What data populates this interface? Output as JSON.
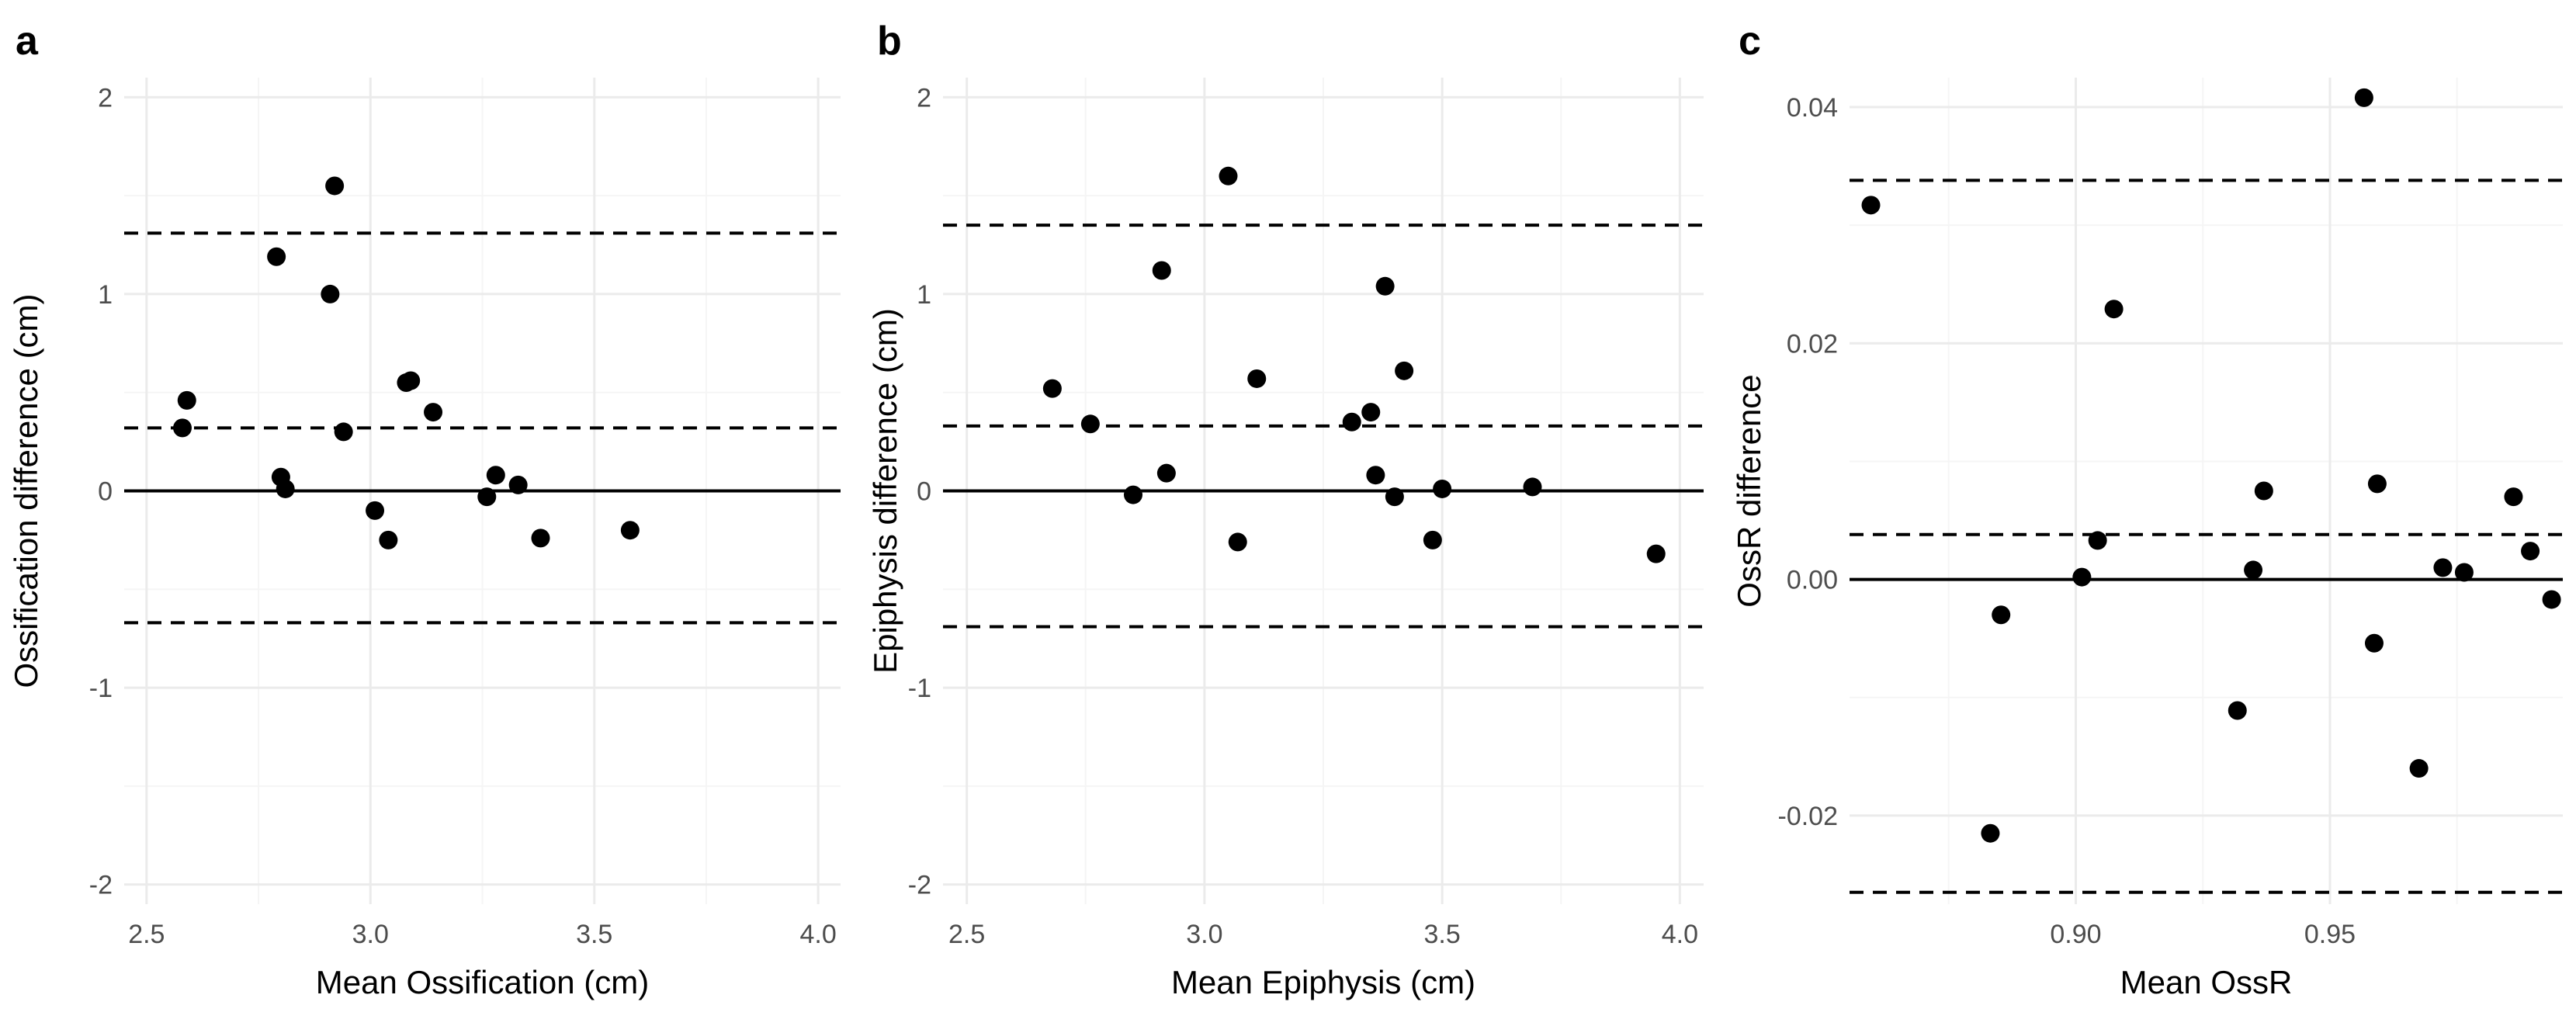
{
  "figure": {
    "background": "#ffffff"
  },
  "colors": {
    "grid_major": "#ebebeb",
    "grid_minor": "#f5f5f5",
    "points": "#000000",
    "lines": "#000000",
    "tick_text": "#4d4d4d"
  },
  "chart_data": [
    {
      "id": "a",
      "panel_label": "a",
      "type": "scatter",
      "xlabel": "Mean Ossification (cm)",
      "ylabel": "Ossification difference (cm)",
      "xlim": [
        2.45,
        4.05
      ],
      "ylim": [
        -2.1,
        2.1
      ],
      "xticks": [
        2.5,
        3.0,
        3.5,
        4.0
      ],
      "xtick_labels": [
        "2.5",
        "3.0",
        "3.5",
        "4.0"
      ],
      "yticks": [
        -2,
        -1,
        0,
        1,
        2
      ],
      "ytick_labels": [
        "-2",
        "-1",
        "0",
        "1",
        "2"
      ],
      "zero_line": 0,
      "mean_diff": 0.32,
      "loa_upper": 1.31,
      "loa_lower": -0.67,
      "points": [
        {
          "x": 2.58,
          "y": 0.32
        },
        {
          "x": 2.59,
          "y": 0.46
        },
        {
          "x": 2.79,
          "y": 1.19
        },
        {
          "x": 2.8,
          "y": 0.07
        },
        {
          "x": 2.81,
          "y": 0.01
        },
        {
          "x": 2.91,
          "y": 1.0
        },
        {
          "x": 2.92,
          "y": 1.55
        },
        {
          "x": 2.94,
          "y": 0.3
        },
        {
          "x": 3.01,
          "y": -0.1
        },
        {
          "x": 3.04,
          "y": -0.25
        },
        {
          "x": 3.08,
          "y": 0.55
        },
        {
          "x": 3.09,
          "y": 0.56
        },
        {
          "x": 3.14,
          "y": 0.4
        },
        {
          "x": 3.26,
          "y": -0.03
        },
        {
          "x": 3.28,
          "y": 0.08
        },
        {
          "x": 3.33,
          "y": 0.03
        },
        {
          "x": 3.38,
          "y": -0.24
        },
        {
          "x": 3.58,
          "y": -0.2
        }
      ]
    },
    {
      "id": "b",
      "panel_label": "b",
      "type": "scatter",
      "xlabel": "Mean Epiphysis (cm)",
      "ylabel": "Epiphysis difference (cm)",
      "xlim": [
        2.45,
        4.05
      ],
      "ylim": [
        -2.1,
        2.1
      ],
      "xticks": [
        2.5,
        3.0,
        3.5,
        4.0
      ],
      "xtick_labels": [
        "2.5",
        "3.0",
        "3.5",
        "4.0"
      ],
      "yticks": [
        -2,
        -1,
        0,
        1,
        2
      ],
      "ytick_labels": [
        "-2",
        "-1",
        "0",
        "1",
        "2"
      ],
      "zero_line": 0,
      "mean_diff": 0.33,
      "loa_upper": 1.35,
      "loa_lower": -0.69,
      "points": [
        {
          "x": 2.68,
          "y": 0.52
        },
        {
          "x": 2.76,
          "y": 0.34
        },
        {
          "x": 2.85,
          "y": -0.02
        },
        {
          "x": 2.91,
          "y": 1.12
        },
        {
          "x": 2.92,
          "y": 0.09
        },
        {
          "x": 3.05,
          "y": 1.6
        },
        {
          "x": 3.07,
          "y": -0.26
        },
        {
          "x": 3.11,
          "y": 0.57
        },
        {
          "x": 3.31,
          "y": 0.35
        },
        {
          "x": 3.35,
          "y": 0.4
        },
        {
          "x": 3.36,
          "y": 0.08
        },
        {
          "x": 3.38,
          "y": 1.04
        },
        {
          "x": 3.4,
          "y": -0.03
        },
        {
          "x": 3.42,
          "y": 0.61
        },
        {
          "x": 3.48,
          "y": -0.25
        },
        {
          "x": 3.5,
          "y": 0.01
        },
        {
          "x": 3.69,
          "y": 0.02
        },
        {
          "x": 3.95,
          "y": -0.32
        }
      ]
    },
    {
      "id": "c",
      "panel_label": "c",
      "type": "scatter",
      "xlabel": "Mean OssR",
      "ylabel": "OssR difference",
      "xlim": [
        0.8555,
        0.9958
      ],
      "ylim": [
        -0.0275,
        0.0425
      ],
      "xticks": [
        0.9,
        0.95
      ],
      "xtick_labels": [
        "0.90",
        "0.95"
      ],
      "yticks": [
        -0.02,
        0.0,
        0.02,
        0.04
      ],
      "ytick_labels": [
        "-0.02",
        "0.00",
        "0.02",
        "0.04"
      ],
      "zero_line": 0,
      "mean_diff": 0.0038,
      "loa_upper": 0.0338,
      "loa_lower": -0.0265,
      "points": [
        {
          "x": 0.8597,
          "y": 0.0317
        },
        {
          "x": 0.8832,
          "y": -0.0215
        },
        {
          "x": 0.8853,
          "y": -0.003
        },
        {
          "x": 0.9012,
          "y": 0.0002
        },
        {
          "x": 0.9043,
          "y": 0.0033
        },
        {
          "x": 0.9075,
          "y": 0.0229
        },
        {
          "x": 0.9318,
          "y": -0.0111
        },
        {
          "x": 0.9349,
          "y": 0.0008
        },
        {
          "x": 0.937,
          "y": 0.0075
        },
        {
          "x": 0.9567,
          "y": 0.0408
        },
        {
          "x": 0.9587,
          "y": -0.0054
        },
        {
          "x": 0.9593,
          "y": 0.0081
        },
        {
          "x": 0.9675,
          "y": -0.016
        },
        {
          "x": 0.9722,
          "y": 0.001
        },
        {
          "x": 0.9764,
          "y": 0.0006
        },
        {
          "x": 0.9861,
          "y": 0.007
        },
        {
          "x": 0.9894,
          "y": 0.0024
        },
        {
          "x": 0.9936,
          "y": -0.0017
        }
      ]
    }
  ]
}
